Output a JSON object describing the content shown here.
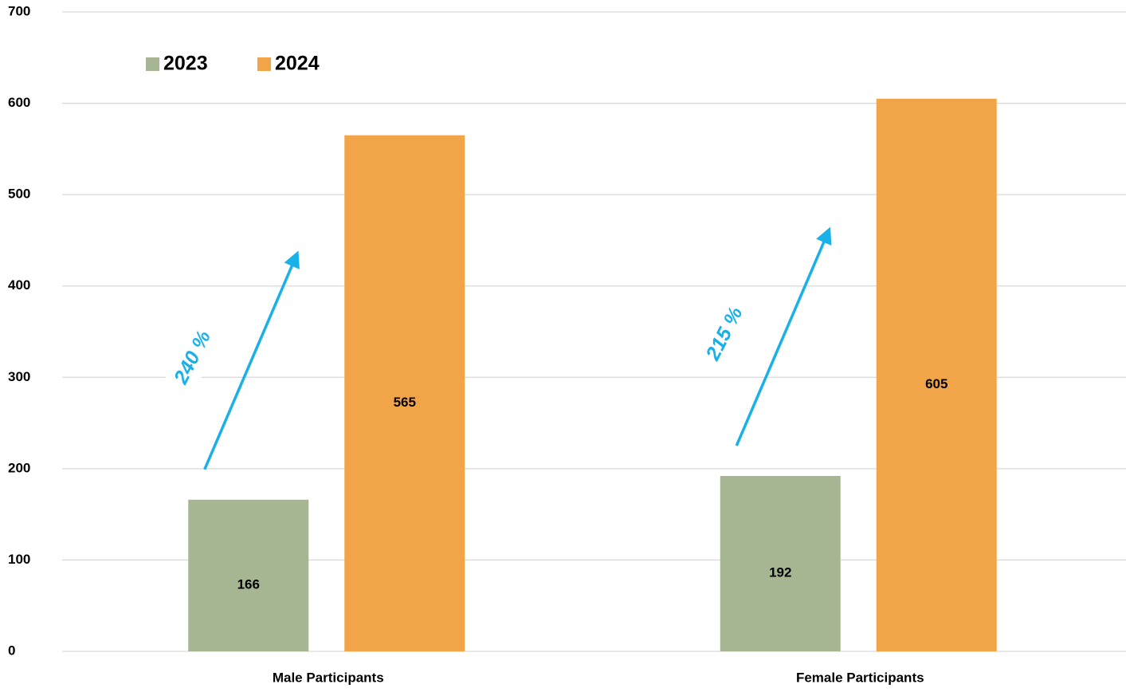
{
  "chart_data": {
    "type": "bar",
    "categories": [
      "Male Participants",
      "Female Participants"
    ],
    "series": [
      {
        "name": "2023",
        "color": "#a6b592",
        "values": [
          166,
          192
        ]
      },
      {
        "name": "2024",
        "color": "#f2a548",
        "values": [
          565,
          605
        ]
      }
    ],
    "annotations": [
      "240 %",
      "215 %"
    ],
    "ylim": [
      0,
      700
    ],
    "yticks": [
      0,
      100,
      200,
      300,
      400,
      500,
      600,
      700
    ],
    "grid": true,
    "legend": "upper left",
    "annotation_color": "#1ab0e8"
  }
}
